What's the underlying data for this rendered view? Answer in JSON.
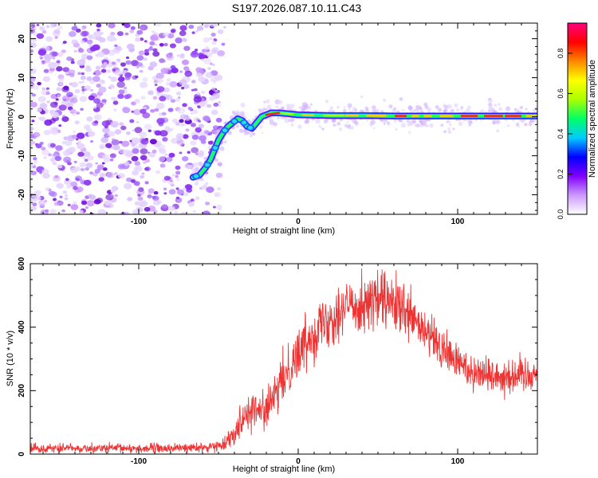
{
  "figure_title": "S197.2026.087.10.11.C43",
  "chart_data": [
    {
      "type": "heatmap",
      "title": "",
      "xlabel": "Height of straight line (km)",
      "ylabel": "Frequency (Hz)",
      "xlim": [
        -168,
        150
      ],
      "ylim": [
        -25,
        24
      ],
      "x_ticks": [
        -100,
        0,
        100
      ],
      "y_ticks": [
        -20,
        -10,
        0,
        10,
        20
      ],
      "x_tick_labels": [
        "-100",
        "0",
        "100"
      ],
      "y_tick_labels": [
        "-20",
        "-10",
        "0",
        "10",
        "20"
      ],
      "noise_region_x": [
        -168,
        -48
      ],
      "ridge": {
        "x": [
          -66,
          -62,
          -58,
          -55,
          -52,
          -50,
          -47,
          -44,
          -41,
          -38,
          -35,
          -32,
          -29,
          -26,
          -23,
          -20,
          -17,
          -12,
          0,
          20,
          40,
          60,
          80,
          100,
          120,
          150
        ],
        "freq": [
          -15.5,
          -15,
          -13,
          -11,
          -8,
          -6,
          -4,
          -2.5,
          -1.5,
          -0.5,
          -1,
          -2.5,
          -3,
          -1.5,
          0,
          0.5,
          1,
          1,
          0.5,
          0.3,
          0.3,
          0.2,
          0.2,
          0.2,
          0.2,
          0.2
        ]
      },
      "colorbar": {
        "label": "Normalized spectral amplitude",
        "range": [
          0,
          0.95
        ],
        "ticks": [
          0.0,
          0.2,
          0.4,
          0.6,
          0.8
        ],
        "tick_labels": [
          "0.0",
          "0.2",
          "0.4",
          "0.6",
          "0.8"
        ],
        "colors": [
          "#ffffff",
          "#cc99ff",
          "#8000ff",
          "#0000ff",
          "#00ccff",
          "#00ff66",
          "#aaff00",
          "#ffff00",
          "#ff8800",
          "#ff0000",
          "#ff0080"
        ]
      }
    },
    {
      "type": "line",
      "title": "",
      "xlabel": "Height of straight line (km)",
      "ylabel": "SNR (10 * v/v)",
      "xlim": [
        -168,
        150
      ],
      "ylim": [
        0,
        600
      ],
      "x_ticks": [
        -100,
        0,
        100
      ],
      "y_ticks": [
        0,
        200,
        400,
        600
      ],
      "x_tick_labels": [
        "-100",
        "0",
        "100"
      ],
      "y_tick_labels": [
        "0",
        "200",
        "400",
        "600"
      ],
      "series": [
        {
          "name": "SNR",
          "color": "#ee3333",
          "x": [
            -168,
            -150,
            -120,
            -100,
            -80,
            -60,
            -50,
            -45,
            -40,
            -35,
            -30,
            -25,
            -20,
            -15,
            -10,
            -5,
            0,
            10,
            20,
            30,
            40,
            50,
            60,
            70,
            80,
            90,
            100,
            110,
            120,
            130,
            140,
            150
          ],
          "mean": [
            20,
            18,
            18,
            18,
            18,
            20,
            25,
            40,
            70,
            115,
            140,
            135,
            145,
            175,
            230,
            280,
            320,
            390,
            430,
            465,
            475,
            485,
            470,
            430,
            380,
            330,
            290,
            260,
            250,
            245,
            250,
            255
          ],
          "noise": [
            10,
            10,
            10,
            10,
            10,
            10,
            12,
            15,
            25,
            35,
            40,
            40,
            40,
            45,
            50,
            55,
            55,
            60,
            60,
            60,
            60,
            65,
            60,
            55,
            50,
            45,
            40,
            40,
            38,
            38,
            40,
            42
          ]
        }
      ]
    }
  ]
}
